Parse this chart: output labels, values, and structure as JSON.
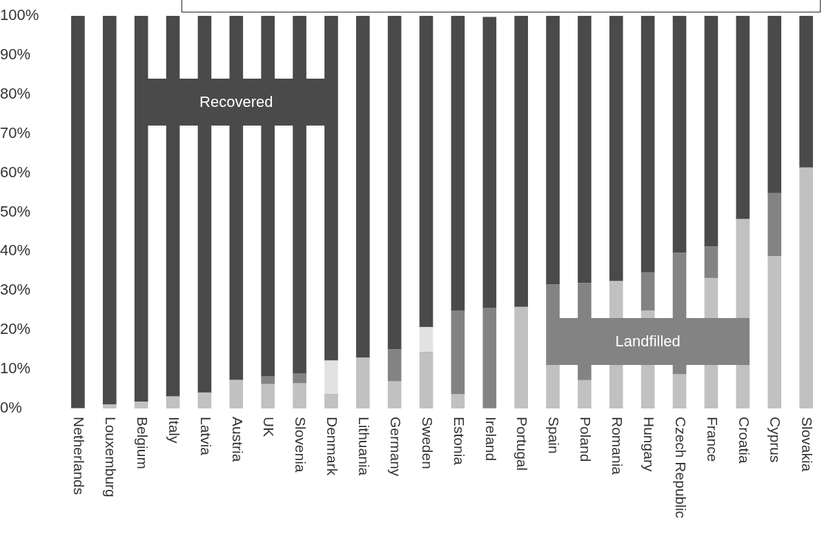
{
  "chart_data": {
    "type": "bar",
    "stacked": true,
    "categories": [
      "Netherlands",
      "Louxemburg",
      "Belgium",
      "Italy",
      "Latvia",
      "Austria",
      "UK",
      "Slovenia",
      "Denmark",
      "Lithuania",
      "Germany",
      "Sweden",
      "Estonia",
      "Ireland",
      "Portugal",
      "Spain",
      "Poland",
      "Romania",
      "Hungary",
      "Czech Republic",
      "France",
      "Croatia",
      "Cyprus",
      "Slovakia"
    ],
    "series": [
      {
        "color": "#c1c1c1",
        "values": [
          0,
          1,
          1.7,
          3,
          4,
          7.2,
          6.2,
          6.4,
          3.6,
          12.9,
          6.9,
          14.3,
          3.6,
          0,
          25.8,
          11,
          7.2,
          32.4,
          24.9,
          8.7,
          33.2,
          48.2,
          38.8,
          61.3
        ]
      },
      {
        "name": "Landfilled",
        "color": "#838383",
        "values": [
          0,
          0,
          0,
          0,
          0,
          0,
          2,
          2.4,
          0,
          0,
          8.1,
          0,
          21.3,
          25.6,
          0,
          20.5,
          24.7,
          0,
          9.7,
          30.9,
          8,
          0,
          16,
          0
        ]
      },
      {
        "color": "#e2e2e2",
        "values": [
          0,
          0,
          0,
          0,
          0,
          0,
          0,
          0,
          8.6,
          0,
          0,
          6.4,
          0,
          0,
          0,
          0,
          0,
          0,
          0,
          0,
          0,
          0,
          0,
          0
        ]
      },
      {
        "name": "Recovered",
        "color": "#4a4a4a",
        "values": [
          100,
          99,
          98.3,
          97,
          96,
          92.8,
          91.8,
          91.2,
          87.8,
          87.1,
          85,
          79.3,
          75.1,
          74.1,
          74.2,
          68.5,
          68.1,
          67.6,
          65.4,
          60.4,
          58.8,
          51.8,
          45.2,
          38.7
        ]
      }
    ],
    "ylim": [
      0,
      100
    ],
    "yticks": [
      {
        "value": 0,
        "label": "0%"
      },
      {
        "value": 10,
        "label": "10%"
      },
      {
        "value": 20,
        "label": "20%"
      },
      {
        "value": 30,
        "label": "30%"
      },
      {
        "value": 40,
        "label": "40%"
      },
      {
        "value": 50,
        "label": "50%"
      },
      {
        "value": 60,
        "label": "60%"
      },
      {
        "value": 70,
        "label": "70%"
      },
      {
        "value": 80,
        "label": "80%"
      },
      {
        "value": 90,
        "label": "90%"
      },
      {
        "value": 100,
        "label": "100%"
      }
    ],
    "legend": false
  }
}
